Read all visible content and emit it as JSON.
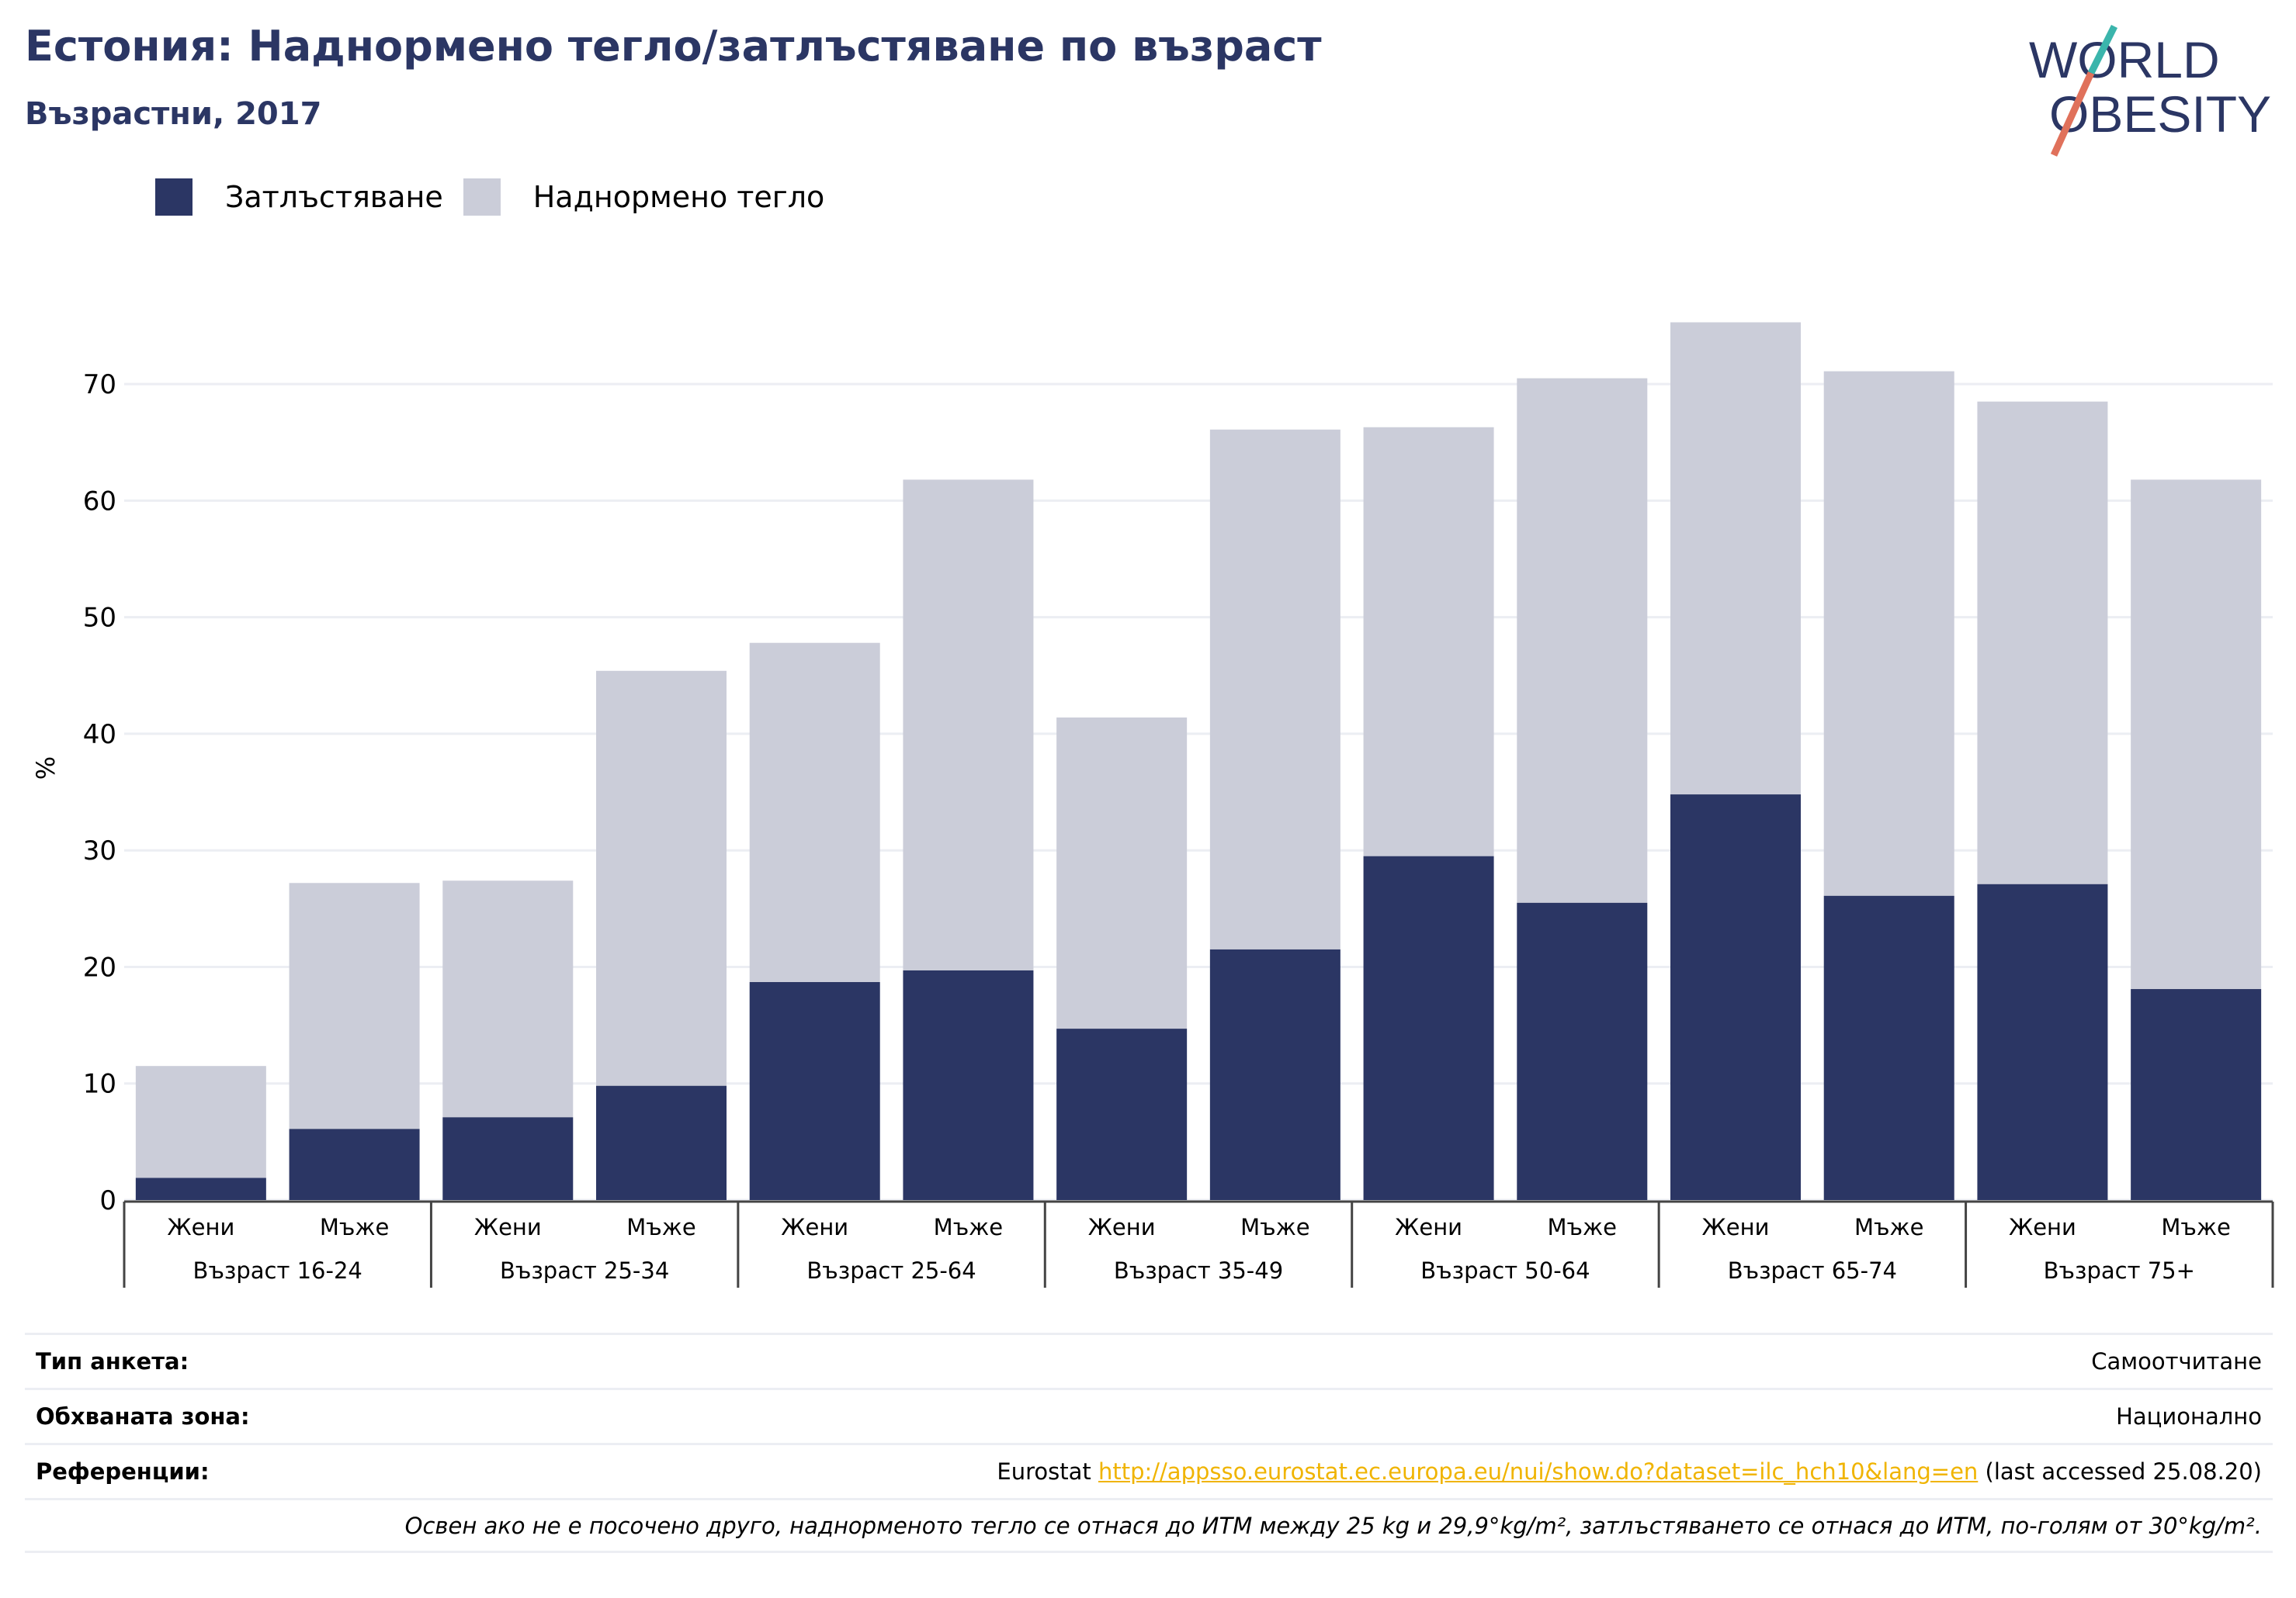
{
  "header": {
    "title": "Естония: Наднормено тегло/затлъстяване по възраст",
    "subtitle": "Възрастни, 2017"
  },
  "logo": {
    "line1": "WORLD",
    "line2": "OBESITY"
  },
  "colors": {
    "obesity": "#2b3664",
    "overweight": "#cbcdd9",
    "accent_teal": "#3bb5ac",
    "accent_red": "#e0715b",
    "link": "#f0b400"
  },
  "legend": {
    "obesity_label": "Затлъстяване",
    "overweight_label": "Наднормено тегло"
  },
  "chart_data": {
    "type": "bar",
    "stacked": true,
    "ylabel": "%",
    "ylim": [
      0,
      75
    ],
    "yticks": [
      0,
      10,
      20,
      30,
      40,
      50,
      60,
      70
    ],
    "grid": true,
    "legend_position": "top-left",
    "groups": [
      "Възраст 16-24",
      "Възраст 25-34",
      "Възраст 25-64",
      "Възраст 35-49",
      "Възраст 50-64",
      "Възраст 65-74",
      "Възраст 75+"
    ],
    "subcategories": [
      "Жени",
      "Мъже"
    ],
    "categories": [
      "Жени",
      "Мъже",
      "Жени",
      "Мъже",
      "Жени",
      "Мъже",
      "Жени",
      "Мъже",
      "Жени",
      "Мъже",
      "Жени",
      "Мъже",
      "Жени",
      "Мъже"
    ],
    "series": [
      {
        "name": "Затлъстяване",
        "values": [
          1.9,
          6.1,
          7.1,
          9.8,
          18.7,
          19.7,
          14.7,
          21.5,
          29.5,
          25.5,
          34.8,
          26.1,
          27.1,
          18.1
        ]
      },
      {
        "name": "Наднормено тегло",
        "values": [
          9.6,
          21.1,
          20.3,
          35.6,
          29.1,
          42.1,
          26.7,
          44.6,
          36.8,
          45.0,
          40.5,
          45.0,
          41.4,
          43.7
        ]
      }
    ]
  },
  "info": {
    "survey_label": "Тип анкета:",
    "survey_value": "Самоотчитане",
    "coverage_label": "Обхваната зона:",
    "coverage_value": "Национално",
    "refs_label": "Референции:",
    "refs_prefix": "Eurostat ",
    "refs_link": "http://appsso.eurostat.ec.europa.eu/nui/show.do?dataset=ilc_hch10&lang=en",
    "refs_suffix": " (last accessed 25.08.20)",
    "note": "Освен ако не е посочено друго, наднорменото тегло се отнася до ИТМ между 25 kg и 29,9°kg/m², затлъстяването се отнася до ИТМ, по-голям от 30°kg/m²."
  }
}
